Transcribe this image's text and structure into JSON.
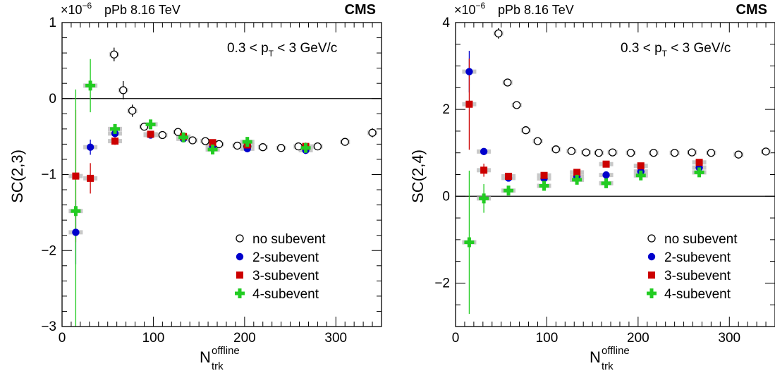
{
  "panels": [
    {
      "exponent_label": "×10",
      "exponent_power": "−6",
      "system": "pPb 8.16 TeV",
      "experiment": "CMS",
      "cut_label": "0.3 < p",
      "cut_sub": "T",
      "cut_rest": " < 3 GeV/c",
      "ylabel": "SC(2,3)",
      "xlabel_main": "N",
      "xlabel_sup": "offline",
      "xlabel_sub": "trk",
      "legend": [
        "no subevent",
        "2-subevent",
        "3-subevent",
        "4-subevent"
      ],
      "ytick_labels": [
        "−3",
        "−2",
        "−1",
        "0",
        "1"
      ],
      "xtick_labels": [
        "0",
        "100",
        "200",
        "300"
      ]
    },
    {
      "exponent_label": "×10",
      "exponent_power": "−6",
      "system": "pPb 8.16 TeV",
      "experiment": "CMS",
      "cut_label": "0.3 < p",
      "cut_sub": "T",
      "cut_rest": " < 3 GeV/c",
      "ylabel": "SC(2,4)",
      "xlabel_main": "N",
      "xlabel_sup": "offline",
      "xlabel_sub": "trk",
      "legend": [
        "no subevent",
        "2-subevent",
        "3-subevent",
        "4-subevent"
      ],
      "ytick_labels": [
        "−2",
        "0",
        "2",
        "4"
      ],
      "xtick_labels": [
        "0",
        "100",
        "200",
        "300"
      ]
    }
  ],
  "colors": {
    "no_subevent": "#000000",
    "two_subevent": "#0000cc",
    "three_subevent": "#cc0000",
    "four_subevent": "#22cc22",
    "syst_box": "#c8c8c8"
  },
  "chart_data": [
    {
      "type": "scatter",
      "ylabel": "SC(2,3)",
      "xlabel": "N_trk^offline",
      "xlim": [
        0,
        350
      ],
      "ylim": [
        -3,
        1
      ],
      "y_scale_factor": "1e-6",
      "series": [
        {
          "name": "no subevent",
          "marker": "open-circle",
          "x": [
            57,
            67,
            77,
            90,
            110,
            127,
            143,
            157,
            172,
            192,
            203,
            220,
            240,
            259,
            280,
            310,
            340
          ],
          "y": [
            0.58,
            0.11,
            -0.16,
            -0.37,
            -0.48,
            -0.44,
            -0.55,
            -0.56,
            -0.6,
            -0.62,
            -0.63,
            -0.64,
            -0.65,
            -0.63,
            -0.63,
            -0.57,
            -0.45
          ],
          "err": [
            0.09,
            0.12,
            0.08,
            0.04,
            0.04,
            0.03,
            0.03,
            0.03,
            0.03,
            0.03,
            0.03,
            0.03,
            0.03,
            0.03,
            0.03,
            0.04,
            0.06
          ]
        },
        {
          "name": "2-subevent",
          "marker": "filled-circle",
          "x": [
            15,
            31,
            58,
            97,
            133,
            165,
            203,
            267
          ],
          "y": [
            -1.76,
            -0.64,
            -0.46,
            -0.48,
            -0.53,
            -0.63,
            -0.66,
            -0.68
          ],
          "err": [
            0.42,
            0.1,
            0.05,
            0.03,
            0.03,
            0.04,
            0.04,
            0.05
          ]
        },
        {
          "name": "3-subevent",
          "marker": "filled-square",
          "x": [
            15,
            31,
            58,
            97,
            133,
            165,
            203,
            267
          ],
          "y": [
            -1.02,
            -1.05,
            -0.56,
            -0.47,
            -0.5,
            -0.58,
            -0.61,
            -0.63
          ],
          "err": [
            0.87,
            0.2,
            0.05,
            0.03,
            0.03,
            0.04,
            0.04,
            0.05
          ]
        },
        {
          "name": "4-subevent",
          "marker": "cross",
          "x": [
            15,
            31,
            58,
            97,
            133,
            165,
            203,
            267
          ],
          "y": [
            -1.48,
            0.17,
            -0.4,
            -0.34,
            -0.51,
            -0.67,
            -0.57,
            -0.65
          ],
          "err": [
            1.6,
            0.35,
            0.06,
            0.04,
            0.03,
            0.04,
            0.04,
            0.05
          ]
        }
      ]
    },
    {
      "type": "scatter",
      "ylabel": "SC(2,4)",
      "xlabel": "N_trk^offline",
      "xlim": [
        0,
        350
      ],
      "ylim": [
        -3,
        4
      ],
      "y_scale_factor": "1e-6",
      "series": [
        {
          "name": "no subevent",
          "marker": "open-circle",
          "x": [
            47,
            57,
            67,
            77,
            90,
            110,
            127,
            143,
            157,
            172,
            192,
            217,
            240,
            259,
            280,
            310,
            340
          ],
          "y": [
            3.75,
            2.62,
            2.1,
            1.52,
            1.27,
            1.08,
            1.04,
            1.01,
            1.0,
            1.01,
            1.0,
            1.0,
            1.0,
            1.01,
            1.0,
            0.96,
            1.03
          ],
          "err": [
            0.12,
            0.06,
            0.05,
            0.04,
            0.03,
            0.03,
            0.03,
            0.03,
            0.03,
            0.03,
            0.03,
            0.03,
            0.03,
            0.03,
            0.03,
            0.04,
            0.05
          ]
        },
        {
          "name": "2-subevent",
          "marker": "filled-circle",
          "x": [
            15,
            31,
            58,
            97,
            133,
            165,
            203,
            267
          ],
          "y": [
            2.87,
            1.03,
            0.42,
            0.41,
            0.45,
            0.49,
            0.57,
            0.66
          ],
          "err": [
            0.48,
            0.07,
            0.04,
            0.04,
            0.04,
            0.04,
            0.05,
            0.06
          ]
        },
        {
          "name": "3-subevent",
          "marker": "filled-square",
          "x": [
            15,
            31,
            58,
            97,
            133,
            165,
            203,
            267
          ],
          "y": [
            2.12,
            0.6,
            0.46,
            0.48,
            0.55,
            0.74,
            0.7,
            0.78
          ],
          "err": [
            1.05,
            0.15,
            0.05,
            0.05,
            0.05,
            0.05,
            0.05,
            0.06
          ]
        },
        {
          "name": "4-subevent",
          "marker": "cross",
          "x": [
            15,
            31,
            58,
            97,
            133,
            165,
            203,
            267
          ],
          "y": [
            -1.06,
            -0.05,
            0.13,
            0.24,
            0.38,
            0.3,
            0.48,
            0.55
          ],
          "err": [
            1.65,
            0.33,
            0.07,
            0.07,
            0.06,
            0.06,
            0.07,
            0.08
          ]
        }
      ]
    }
  ]
}
